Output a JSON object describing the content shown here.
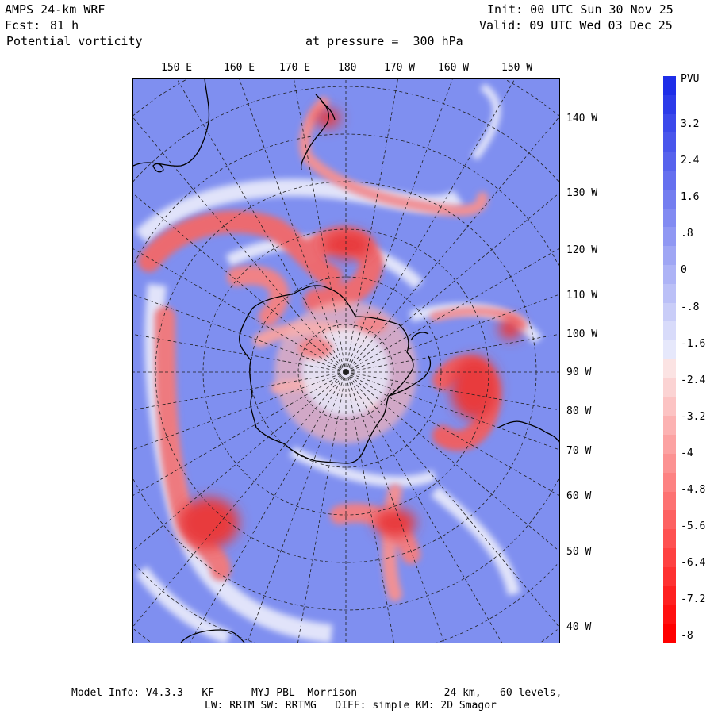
{
  "header": {
    "model": "AMPS 24-km WRF",
    "forecast_label": "Fcst:",
    "forecast_hours": "81 h",
    "field": "Potential vorticity",
    "level": "at pressure =  300 hPa",
    "init": "Init: 00 UTC Sun 30 Nov 25",
    "valid": "Valid: 09 UTC Wed 03 Dec 25"
  },
  "map": {
    "top_longitudes": [
      "150 E",
      "160 E",
      "170 E",
      "180",
      "170 W",
      "160 W",
      "150 W"
    ],
    "right_longitudes": [
      "140 W",
      "130 W",
      "120 W",
      "110 W",
      "100 W",
      "90 W",
      "80 W",
      "70 W",
      "60 W",
      "50 W",
      "40 W"
    ]
  },
  "colorbar": {
    "unit": "PVU",
    "labels": [
      "3.2",
      "2.4",
      "1.6",
      ".8",
      "0",
      "-.8",
      "-1.6",
      "-2.4",
      "-3.2",
      "-4",
      "-4.8",
      "-5.6",
      "-6.4",
      "-7.2",
      "-8"
    ],
    "colors": {
      "positive_top": "#1e2ee8",
      "positive_light": "#e6e8fb",
      "negative_light": "#fbe3e3",
      "negative_bottom": "#ff0000"
    }
  },
  "footer": {
    "line1": "Model Info: V4.3.3   KF      MYJ PBL  Morrison              24 km,   60 levels,",
    "line2": "LW: RRTM SW: RRTMG   DIFF: simple KM: 2D Smagor"
  }
}
